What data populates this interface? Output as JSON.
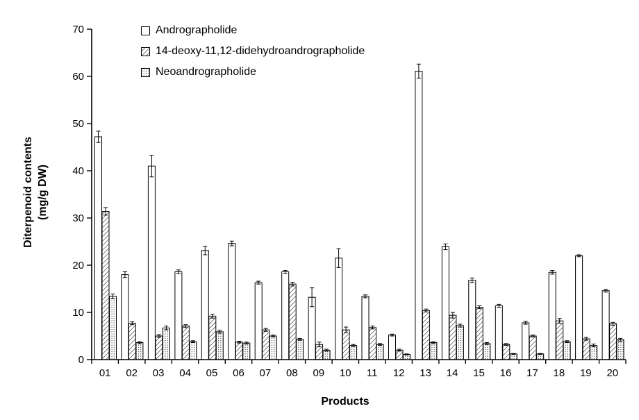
{
  "page": {
    "background": "#ffffff",
    "text_color": "#000000"
  },
  "chart_data": {
    "type": "bar",
    "title": "",
    "xlabel": "Products",
    "ylabel_line1": "Diterpenoid contents",
    "ylabel_line2": "(mg/g DW)",
    "ylim": [
      0,
      70
    ],
    "yticks": [
      0,
      10,
      20,
      30,
      40,
      50,
      60,
      70
    ],
    "grid": false,
    "error_bars": true,
    "legend_position": "top-left-inside",
    "categories": [
      "01",
      "02",
      "03",
      "04",
      "05",
      "06",
      "07",
      "08",
      "09",
      "10",
      "11",
      "12",
      "13",
      "14",
      "15",
      "16",
      "17",
      "18",
      "19",
      "20"
    ],
    "series": [
      {
        "name": "Andrographolide",
        "pattern": "solid-white",
        "values": [
          47.2,
          18.0,
          41.0,
          18.6,
          23.1,
          24.6,
          16.3,
          18.6,
          13.2,
          21.5,
          13.4,
          5.2,
          61.1,
          23.9,
          16.8,
          11.4,
          7.8,
          18.5,
          22.0,
          14.6
        ],
        "errors": [
          1.2,
          0.6,
          2.3,
          0.4,
          0.9,
          0.5,
          0.3,
          0.3,
          2.0,
          2.0,
          0.3,
          0.2,
          1.5,
          0.6,
          0.5,
          0.3,
          0.3,
          0.4,
          0.2,
          0.3
        ]
      },
      {
        "name": "14-deoxy-11,12-didehydroandrographolide",
        "pattern": "diagonal-hatch",
        "values": [
          31.4,
          7.7,
          5.0,
          7.1,
          9.2,
          3.7,
          6.3,
          16.0,
          3.2,
          6.3,
          6.8,
          2.0,
          10.4,
          9.4,
          11.1,
          3.2,
          5.0,
          8.2,
          4.4,
          7.6
        ],
        "errors": [
          0.8,
          0.3,
          0.3,
          0.3,
          0.4,
          0.2,
          0.3,
          0.4,
          0.5,
          0.6,
          0.3,
          0.2,
          0.3,
          0.6,
          0.3,
          0.2,
          0.2,
          0.5,
          0.3,
          0.3
        ]
      },
      {
        "name": "Neoandrographolide",
        "pattern": "dot-stipple",
        "values": [
          13.4,
          3.6,
          6.7,
          3.8,
          5.9,
          3.5,
          5.0,
          4.3,
          2.0,
          3.0,
          3.2,
          1.1,
          3.6,
          7.2,
          3.4,
          1.2,
          1.2,
          3.8,
          3.0,
          4.2
        ],
        "errors": [
          0.5,
          0.2,
          0.4,
          0.2,
          0.3,
          0.2,
          0.2,
          0.2,
          0.2,
          0.2,
          0.2,
          0.1,
          0.2,
          0.3,
          0.2,
          0.1,
          0.1,
          0.2,
          0.3,
          0.3
        ]
      }
    ],
    "colors": {
      "bar_fill": "#ffffff",
      "bar_stroke": "#000000",
      "axis": "#000000",
      "text": "#000000"
    }
  }
}
